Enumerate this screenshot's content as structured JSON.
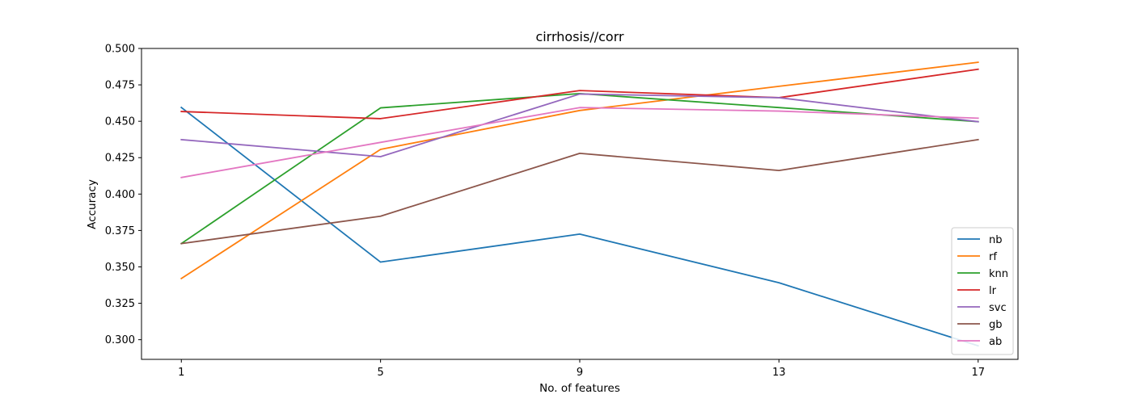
{
  "chart_data": {
    "type": "line",
    "title": "cirrhosis//corr",
    "xlabel": "No. of features",
    "ylabel": "Accuracy",
    "x": [
      1,
      5,
      9,
      13,
      17
    ],
    "x_ticks": [
      "1",
      "5",
      "9",
      "13",
      "17"
    ],
    "ylim": [
      0.2865,
      0.5
    ],
    "y_ticks": [
      "0.300",
      "0.325",
      "0.350",
      "0.375",
      "0.400",
      "0.425",
      "0.450",
      "0.475",
      "0.500"
    ],
    "grid": false,
    "legend_position": "bottom-right",
    "series": [
      {
        "name": "nb",
        "color": "#1f77b4",
        "values": [
          0.4595,
          0.3533,
          0.3725,
          0.3391,
          0.2958
        ]
      },
      {
        "name": "rf",
        "color": "#ff7f0e",
        "values": [
          0.342,
          0.4307,
          0.4574,
          0.474,
          0.4905
        ]
      },
      {
        "name": "knn",
        "color": "#2ca02c",
        "values": [
          0.366,
          0.4592,
          0.469,
          0.4594,
          0.4497
        ]
      },
      {
        "name": "lr",
        "color": "#d62728",
        "values": [
          0.4567,
          0.4518,
          0.4711,
          0.4662,
          0.4857
        ]
      },
      {
        "name": "svc",
        "color": "#9467bd",
        "values": [
          0.4374,
          0.4257,
          0.4687,
          0.4662,
          0.4497
        ]
      },
      {
        "name": "gb",
        "color": "#8c564b",
        "values": [
          0.366,
          0.3848,
          0.428,
          0.4162,
          0.4374
        ]
      },
      {
        "name": "ab",
        "color": "#e377c2",
        "values": [
          0.4114,
          0.4355,
          0.4594,
          0.457,
          0.4521
        ]
      }
    ]
  }
}
